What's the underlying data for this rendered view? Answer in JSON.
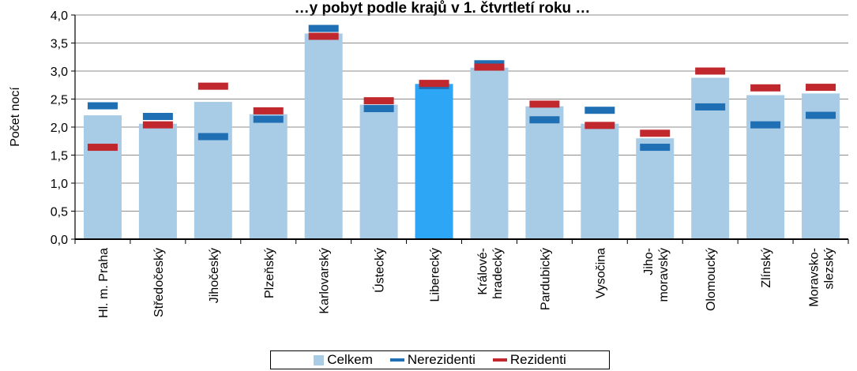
{
  "chart_data": {
    "type": "bar",
    "title": "…y pobyt podle krajů v 1. čtvrtletí roku …",
    "ylabel": "Počet nocí",
    "ylim": [
      0,
      4.0
    ],
    "yticks": [
      "0,0",
      "0,5",
      "1,0",
      "1,5",
      "2,0",
      "2,5",
      "3,0",
      "3,5",
      "4,0"
    ],
    "categories": [
      [
        "Hl. m. Praha"
      ],
      [
        "Středočeský"
      ],
      [
        "Jihočeský"
      ],
      [
        "Plzeňský"
      ],
      [
        "Karlovarský"
      ],
      [
        "Ústecký"
      ],
      [
        "Liberecký"
      ],
      [
        "Králové-",
        "hradecký"
      ],
      [
        "Pardubický"
      ],
      [
        "Vysočina"
      ],
      [
        "Jiho-",
        "moravský"
      ],
      [
        "Olomoucký"
      ],
      [
        "Zlínský"
      ],
      [
        "Moravsko-",
        "slezský"
      ]
    ],
    "highlight_index": 6,
    "series": [
      {
        "name": "Celkem",
        "kind": "bar",
        "color": "#a8cbe6",
        "values": [
          2.21,
          2.06,
          2.45,
          2.23,
          3.67,
          2.4,
          2.77,
          3.06,
          2.37,
          2.06,
          1.8,
          2.88,
          2.57,
          2.6
        ]
      },
      {
        "name": "Nerezidenti",
        "kind": "marker",
        "color": "#1f6fb4",
        "values": [
          2.38,
          2.19,
          1.83,
          2.14,
          3.76,
          2.33,
          2.74,
          3.13,
          2.13,
          2.3,
          1.64,
          2.36,
          2.04,
          2.21
        ]
      },
      {
        "name": "Rezidenti",
        "kind": "marker",
        "color": "#c0282e",
        "values": [
          1.64,
          2.04,
          2.73,
          2.29,
          3.62,
          2.47,
          2.78,
          3.07,
          2.41,
          2.03,
          1.89,
          3.0,
          2.7,
          2.71
        ]
      }
    ],
    "highlight_color": "#2ea6f6",
    "legend_position": "bottom"
  }
}
